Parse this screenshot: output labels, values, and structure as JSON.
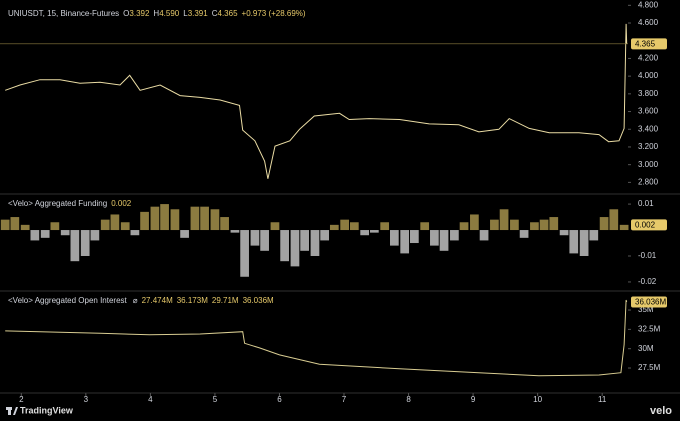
{
  "chart_data": [
    {
      "type": "line",
      "title": "UNIUSDT, 15, Binance-Futures",
      "header_items": [
        {
          "key": "O",
          "text": "3.392"
        },
        {
          "key": "H",
          "text": "4.590"
        },
        {
          "key": "L",
          "text": "3.391"
        },
        {
          "key": "C",
          "text": "4.365"
        }
      ],
      "change": "+0.973 (+28.69%)",
      "last_label": "4.365",
      "color": "#eadca4",
      "x": [
        1.75,
        1.98,
        2.29,
        2.6,
        2.91,
        3.22,
        3.53,
        3.68,
        3.84,
        4.15,
        4.46,
        4.77,
        5.08,
        5.38,
        5.43,
        5.62,
        5.77,
        5.82,
        5.93,
        6.16,
        6.31,
        6.54,
        6.93,
        7.08,
        7.39,
        7.86,
        8.32,
        8.78,
        9.09,
        9.4,
        9.56,
        9.87,
        10.18,
        10.64,
        10.95,
        11.1,
        11.26,
        11.34,
        11.37,
        11.38
      ],
      "values": [
        3.84,
        3.9,
        3.96,
        3.96,
        3.92,
        3.93,
        3.9,
        4.01,
        3.84,
        3.9,
        3.78,
        3.76,
        3.73,
        3.67,
        3.39,
        3.27,
        3.04,
        2.84,
        3.21,
        3.27,
        3.4,
        3.55,
        3.58,
        3.51,
        3.52,
        3.51,
        3.46,
        3.45,
        3.37,
        3.4,
        3.52,
        3.41,
        3.36,
        3.36,
        3.34,
        3.26,
        3.27,
        3.41,
        4.59,
        4.365
      ],
      "xlim": [
        1.67,
        11.4
      ],
      "ylim": [
        2.68,
        4.86
      ],
      "yticks": [
        {
          "value": 2.8,
          "label": "2.800"
        },
        {
          "value": 3.0,
          "label": "3.000"
        },
        {
          "value": 3.2,
          "label": "3.200"
        },
        {
          "value": 3.4,
          "label": "3.400"
        },
        {
          "value": 3.6,
          "label": "3.600"
        },
        {
          "value": 3.8,
          "label": "3.800"
        },
        {
          "value": 4.0,
          "label": "4.000"
        },
        {
          "value": 4.2,
          "label": "4.200"
        },
        {
          "value": 4.6,
          "label": "4.600"
        },
        {
          "value": 4.8,
          "label": "4.800"
        }
      ]
    },
    {
      "type": "bar",
      "title": "<Velo> Aggregated Funding",
      "header_value": "0.002",
      "last_label": "0.002",
      "positive_color": "#8c7b40",
      "negative_color": "#a3a3a3",
      "x": [
        1.75,
        1.9,
        2.06,
        2.21,
        2.37,
        2.52,
        2.68,
        2.83,
        2.99,
        3.14,
        3.3,
        3.45,
        3.61,
        3.76,
        3.91,
        4.07,
        4.22,
        4.38,
        4.53,
        4.69,
        4.84,
        5.0,
        5.15,
        5.31,
        5.46,
        5.62,
        5.77,
        5.93,
        6.08,
        6.24,
        6.39,
        6.55,
        6.7,
        6.85,
        7.01,
        7.16,
        7.32,
        7.47,
        7.63,
        7.78,
        7.94,
        8.09,
        8.25,
        8.4,
        8.55,
        8.71,
        8.86,
        9.02,
        9.17,
        9.33,
        9.48,
        9.64,
        9.79,
        9.95,
        10.1,
        10.25,
        10.41,
        10.56,
        10.72,
        10.87,
        11.03,
        11.18,
        11.34
      ],
      "values": [
        0.004,
        0.005,
        0.002,
        -0.004,
        -0.003,
        0.003,
        -0.002,
        -0.012,
        -0.01,
        -0.004,
        0.004,
        0.006,
        0.003,
        -0.002,
        0.007,
        0.009,
        0.01,
        0.008,
        -0.003,
        0.009,
        0.009,
        0.008,
        0.005,
        -0.001,
        -0.018,
        -0.006,
        -0.008,
        0.003,
        -0.012,
        -0.014,
        -0.008,
        -0.01,
        -0.004,
        0.002,
        0.004,
        0.003,
        -0.002,
        -0.001,
        0.003,
        -0.006,
        -0.009,
        -0.005,
        0.003,
        -0.006,
        -0.008,
        -0.004,
        0.003,
        0.006,
        -0.004,
        0.004,
        0.008,
        0.004,
        -0.003,
        0.003,
        0.004,
        0.005,
        -0.002,
        -0.009,
        -0.01,
        -0.004,
        0.005,
        0.008,
        0.002
      ],
      "xlim": [
        1.67,
        11.4
      ],
      "ylim": [
        -0.0231,
        0.0135
      ],
      "yticks": [
        0.01,
        -0.01,
        -0.02
      ]
    },
    {
      "type": "line",
      "title": "<Velo> Aggregated Open Interest",
      "symbol": "⌀",
      "header_values": [
        "27.474M",
        "36.173M",
        "29.71M",
        "36.036M"
      ],
      "last_label": "36.036M",
      "color": "#d9cd92",
      "x": [
        1.75,
        3.22,
        3.99,
        4.77,
        5.43,
        5.46,
        5.69,
        6.0,
        6.62,
        7.86,
        9.09,
        10.02,
        10.95,
        11.29,
        11.34,
        11.37,
        11.38
      ],
      "values": [
        32300000,
        32000000,
        31800000,
        31900000,
        32200000,
        30700000,
        30100000,
        29200000,
        28000000,
        27400000,
        26900000,
        26500000,
        26600000,
        26900000,
        30500000,
        36300000,
        36036000
      ],
      "xlim": [
        1.67,
        11.4
      ],
      "ylim": [
        24400000,
        37330000
      ],
      "yticks": [
        {
          "value": 27500000,
          "label": "27.5M"
        },
        {
          "value": 30000000,
          "label": "30M"
        },
        {
          "value": 32500000,
          "label": "32.5M"
        },
        {
          "value": 35000000,
          "label": "35M"
        }
      ],
      "xticks": [
        2,
        3,
        4,
        5,
        6,
        7,
        8,
        9,
        10,
        11
      ]
    }
  ],
  "branding": {
    "left": "TradingView",
    "right": "velo"
  }
}
